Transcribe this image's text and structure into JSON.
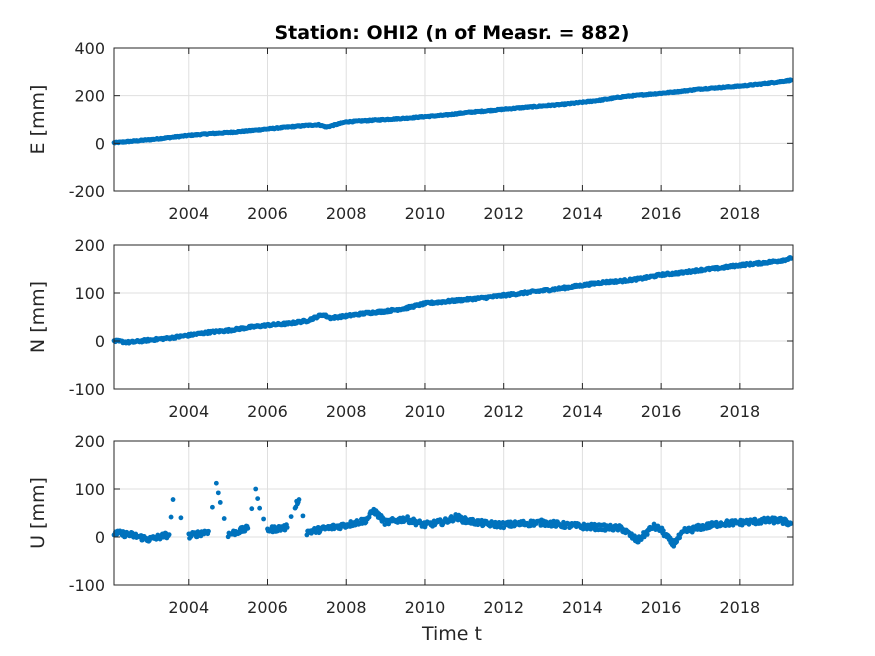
{
  "colors": {
    "marker": "#0072BD",
    "axis": "#262626",
    "grid": "#dfdfdf"
  },
  "chart_data": {
    "type": "scatter",
    "title": "Station: OHI2 (n of Measr. = 882)",
    "xlabel": "Time t",
    "xlim": [
      2002.1,
      2019.35
    ],
    "xticks": [
      2004,
      2006,
      2008,
      2010,
      2012,
      2014,
      2016,
      2018
    ],
    "xtick_labels": [
      "2004",
      "2006",
      "2008",
      "2010",
      "2012",
      "2014",
      "2016",
      "2018"
    ],
    "grid": true,
    "panels": [
      {
        "name": "E",
        "ylabel": "E [mm]",
        "ylim": [
          -200,
          400
        ],
        "yticks": [
          -200,
          0,
          200,
          400
        ],
        "ytick_labels": [
          "-200",
          "0",
          "200",
          "400"
        ],
        "series": {
          "x": [
            2002.1,
            2002.5,
            2003,
            2003.5,
            2004,
            2004.5,
            2005,
            2005.5,
            2006,
            2006.5,
            2007,
            2007.3,
            2007.5,
            2008,
            2008.5,
            2009,
            2009.5,
            2010,
            2010.5,
            2011,
            2011.5,
            2012,
            2012.5,
            2013,
            2013.5,
            2014,
            2014.5,
            2015,
            2015.5,
            2016,
            2016.5,
            2017,
            2017.5,
            2018,
            2018.5,
            2019,
            2019.3
          ],
          "y": [
            2,
            8,
            15,
            24,
            33,
            40,
            45,
            52,
            60,
            68,
            75,
            78,
            68,
            90,
            95,
            100,
            105,
            112,
            118,
            128,
            135,
            143,
            150,
            157,
            163,
            172,
            182,
            195,
            203,
            210,
            218,
            228,
            234,
            240,
            248,
            258,
            265
          ]
        }
      },
      {
        "name": "N",
        "ylabel": "N [mm]",
        "ylim": [
          -100,
          200
        ],
        "yticks": [
          -100,
          0,
          100,
          200
        ],
        "ytick_labels": [
          "-100",
          "0",
          "100",
          "200"
        ],
        "series": {
          "x": [
            2002.1,
            2002.5,
            2003,
            2003.5,
            2004,
            2004.5,
            2005,
            2005.5,
            2006,
            2006.5,
            2007,
            2007.4,
            2007.6,
            2008,
            2008.5,
            2009,
            2009.5,
            2010,
            2010.5,
            2011,
            2011.5,
            2012,
            2012.5,
            2013,
            2013.5,
            2014,
            2014.5,
            2015,
            2015.5,
            2016,
            2016.5,
            2017,
            2017.5,
            2018,
            2018.5,
            2019,
            2019.3
          ],
          "y": [
            0,
            -3,
            2,
            6,
            12,
            18,
            22,
            28,
            33,
            36,
            42,
            55,
            48,
            52,
            58,
            62,
            68,
            78,
            82,
            86,
            90,
            95,
            100,
            105,
            110,
            116,
            122,
            125,
            130,
            138,
            142,
            148,
            152,
            158,
            162,
            167,
            172
          ]
        }
      },
      {
        "name": "U",
        "ylabel": "U [mm]",
        "ylim": [
          -100,
          200
        ],
        "yticks": [
          -100,
          0,
          100,
          200
        ],
        "ytick_labels": [
          "-100",
          "0",
          "100",
          "200"
        ],
        "series": {
          "x": [
            2002.1,
            2002.5,
            2003,
            2003.5,
            2003.6,
            2004,
            2004.5,
            2004.7,
            2004.8,
            2005,
            2005.5,
            2005.7,
            2005.8,
            2006,
            2006.5,
            2006.7,
            2006.8,
            2007,
            2007.5,
            2008,
            2008.5,
            2008.7,
            2009,
            2009.5,
            2010,
            2010.5,
            2010.8,
            2011,
            2011.5,
            2012,
            2012.5,
            2013,
            2013.5,
            2014,
            2014.5,
            2015,
            2015.4,
            2015.8,
            2016,
            2016.3,
            2016.6,
            2017,
            2017.5,
            2018,
            2018.5,
            2019,
            2019.3
          ],
          "y": [
            8,
            5,
            -5,
            5,
            78,
            2,
            12,
            112,
            72,
            5,
            18,
            100,
            60,
            15,
            20,
            65,
            78,
            10,
            18,
            25,
            35,
            55,
            30,
            38,
            25,
            32,
            42,
            35,
            28,
            25,
            28,
            30,
            25,
            22,
            20,
            18,
            -8,
            22,
            15,
            -15,
            12,
            20,
            28,
            30,
            33,
            35,
            28
          ]
        }
      }
    ]
  }
}
